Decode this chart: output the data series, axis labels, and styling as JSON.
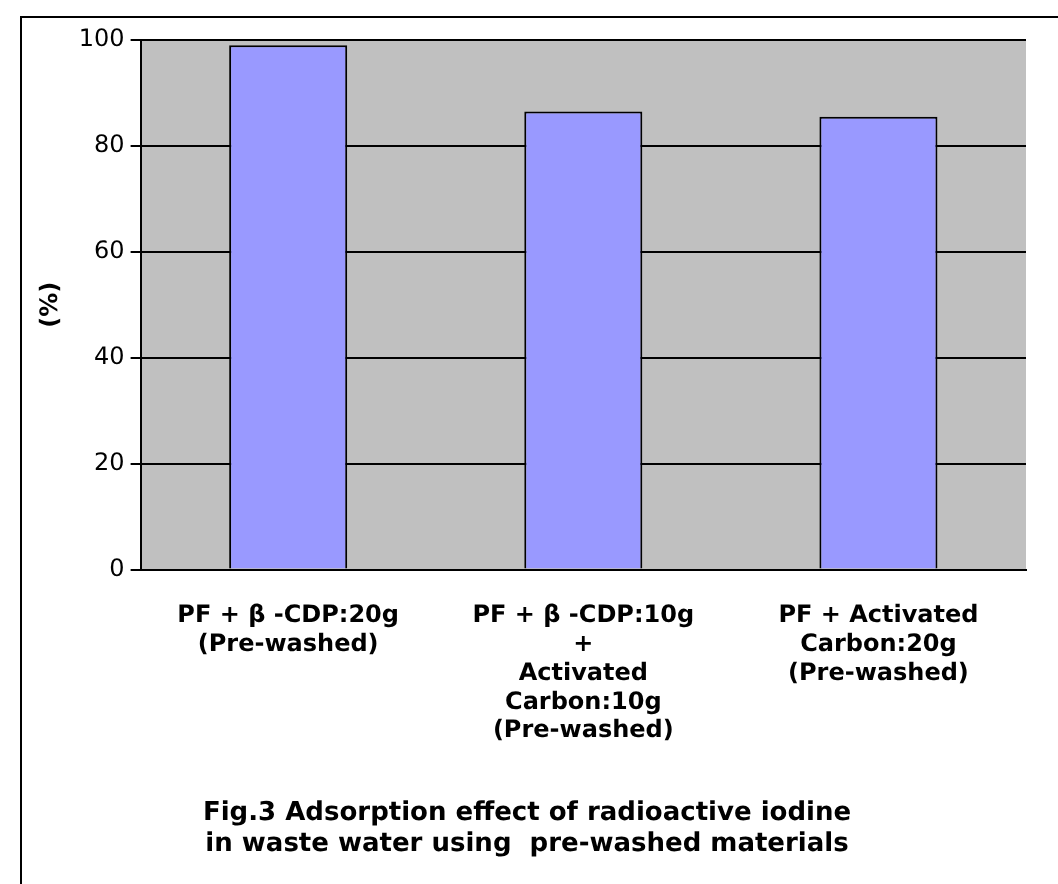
{
  "chart_data": {
    "type": "bar",
    "title": "Fig.3 Adsorption effect of radioactive iodine\nin waste water using  pre-washed materials",
    "ylabel": "(%)",
    "categories": [
      "PF + β -CDP:20g\n(Pre-washed)",
      "PF + β -CDP:10g\n+\nActivated\nCarbon:10g\n(Pre-washed)",
      "PF + Activated\nCarbon:20g\n(Pre-washed)"
    ],
    "values": [
      99,
      86.5,
      85.5
    ],
    "color": "#9999ff",
    "ylim": [
      0,
      100
    ],
    "yticks": [
      0,
      20,
      40,
      60,
      80,
      100
    ],
    "grid": "y",
    "legend": false
  }
}
